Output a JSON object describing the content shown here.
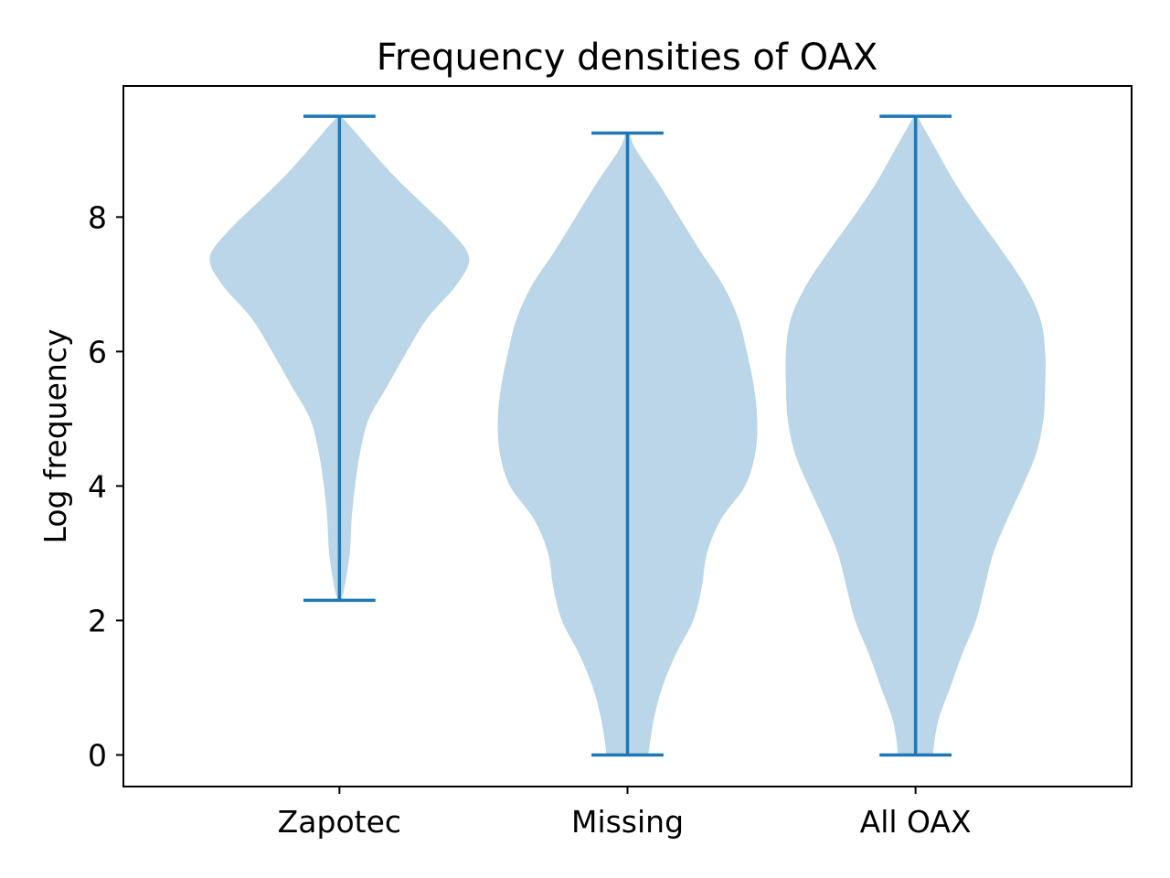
{
  "chart_data": {
    "type": "violin",
    "title": "Frequency densities of OAX",
    "xlabel": "",
    "ylabel": "Log frequency",
    "ylim": [
      -0.47,
      9.95
    ],
    "yticks": [
      0,
      2,
      4,
      6,
      8
    ],
    "categories": [
      "Zapotec",
      "Missing",
      "All OAX"
    ],
    "grid": false,
    "legend": "none",
    "colors": {
      "body": "#1f77b4",
      "body_opacity": 0.3,
      "lines": "#1f77b4"
    },
    "violins": [
      {
        "category": "Zapotec",
        "min": 2.3,
        "max": 9.5,
        "density": [
          [
            2.3,
            0.01
          ],
          [
            2.5,
            0.03
          ],
          [
            3.0,
            0.06
          ],
          [
            3.5,
            0.07
          ],
          [
            4.0,
            0.09
          ],
          [
            4.5,
            0.12
          ],
          [
            5.0,
            0.17
          ],
          [
            5.5,
            0.28
          ],
          [
            6.0,
            0.39
          ],
          [
            6.5,
            0.51
          ],
          [
            7.0,
            0.68
          ],
          [
            7.4,
            0.75
          ],
          [
            7.8,
            0.64
          ],
          [
            8.2,
            0.48
          ],
          [
            8.6,
            0.32
          ],
          [
            9.0,
            0.18
          ],
          [
            9.3,
            0.08
          ],
          [
            9.5,
            0.01
          ]
        ]
      },
      {
        "category": "Missing",
        "min": 0,
        "max": 9.25,
        "density": [
          [
            0.0,
            0.12
          ],
          [
            0.5,
            0.15
          ],
          [
            1.0,
            0.2
          ],
          [
            1.5,
            0.28
          ],
          [
            2.0,
            0.38
          ],
          [
            2.5,
            0.43
          ],
          [
            3.0,
            0.46
          ],
          [
            3.5,
            0.54
          ],
          [
            4.0,
            0.68
          ],
          [
            4.5,
            0.74
          ],
          [
            5.0,
            0.75
          ],
          [
            5.5,
            0.73
          ],
          [
            6.0,
            0.69
          ],
          [
            6.5,
            0.64
          ],
          [
            7.0,
            0.55
          ],
          [
            7.5,
            0.42
          ],
          [
            8.0,
            0.3
          ],
          [
            8.5,
            0.18
          ],
          [
            9.0,
            0.05
          ],
          [
            9.25,
            0.01
          ]
        ]
      },
      {
        "category": "All OAX",
        "min": 0,
        "max": 9.5,
        "density": [
          [
            0.0,
            0.1
          ],
          [
            0.5,
            0.13
          ],
          [
            1.0,
            0.2
          ],
          [
            1.5,
            0.27
          ],
          [
            2.0,
            0.35
          ],
          [
            2.5,
            0.4
          ],
          [
            3.0,
            0.45
          ],
          [
            3.5,
            0.53
          ],
          [
            4.0,
            0.62
          ],
          [
            4.5,
            0.7
          ],
          [
            5.0,
            0.74
          ],
          [
            5.5,
            0.75
          ],
          [
            6.0,
            0.75
          ],
          [
            6.5,
            0.72
          ],
          [
            7.0,
            0.63
          ],
          [
            7.5,
            0.5
          ],
          [
            8.0,
            0.36
          ],
          [
            8.5,
            0.23
          ],
          [
            9.0,
            0.12
          ],
          [
            9.5,
            0.01
          ]
        ]
      }
    ]
  }
}
